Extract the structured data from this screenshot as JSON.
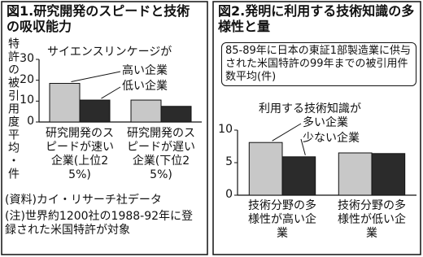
{
  "chart_data": [
    {
      "type": "bar",
      "title": "図1.研究開発のスピードと技術の吸収能力",
      "y_label": "特許の被引用度平均・件",
      "annotation": "サイエンスリンケージが",
      "categories": [
        "研究開発のスピードが速い企業(上位25%)",
        "研究開発のスピードが遅い企業(下位25%)"
      ],
      "series": [
        {
          "name": "高い企業",
          "color": "#c8c8c8",
          "values": [
            18.5,
            10.5
          ]
        },
        {
          "name": "低い企業",
          "color": "#2b2b2b",
          "values": [
            10.5,
            7.5
          ]
        }
      ],
      "ylim": [
        0,
        30
      ],
      "yticks": [
        0,
        10,
        20,
        30
      ],
      "notes": [
        "(資料)カイ・リサーチ社データ",
        "(注)世界約1200社の1988-92年に登録された米国特許が対象"
      ]
    },
    {
      "type": "bar",
      "title": "図2.発明に利用する技術知識の多様性と量",
      "subtitle": "85-89年に日本の東証1部製造業に供与された米国特許の99年までの被引用件数平均(件)",
      "annotation": "利用する技術知識が",
      "categories": [
        "技術分野の多様性が高い企業",
        "技術分野の多様性が低い企業"
      ],
      "series": [
        {
          "name": "多い企業",
          "color": "#c8c8c8",
          "values": [
            8.1,
            6.5
          ]
        },
        {
          "name": "少ない企業",
          "color": "#2b2b2b",
          "values": [
            5.9,
            6.4
          ]
        }
      ],
      "ylim": [
        0,
        10
      ],
      "yticks": [
        0,
        5,
        10
      ]
    }
  ]
}
